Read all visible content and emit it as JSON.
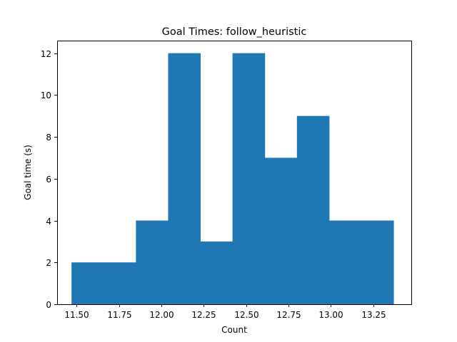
{
  "chart_data": {
    "type": "bar",
    "title": "Goal Times: follow_heuristic",
    "xlabel": "Count",
    "ylabel": "Goal time (s)",
    "bar_color": "#1f77b4",
    "xlim": [
      11.385,
      13.475
    ],
    "ylim": [
      0,
      12.6
    ],
    "bins": [
      {
        "x0": 11.47,
        "x1": 11.66,
        "value": 2
      },
      {
        "x0": 11.66,
        "x1": 11.85,
        "value": 2
      },
      {
        "x0": 11.85,
        "x1": 12.04,
        "value": 4
      },
      {
        "x0": 12.04,
        "x1": 12.23,
        "value": 12
      },
      {
        "x0": 12.23,
        "x1": 12.42,
        "value": 3
      },
      {
        "x0": 12.42,
        "x1": 12.61,
        "value": 12
      },
      {
        "x0": 12.61,
        "x1": 12.8,
        "value": 7
      },
      {
        "x0": 12.8,
        "x1": 12.99,
        "value": 9
      },
      {
        "x0": 12.99,
        "x1": 13.18,
        "value": 4
      },
      {
        "x0": 13.18,
        "x1": 13.37,
        "value": 4
      }
    ],
    "x_ticks": [
      {
        "value": 11.5,
        "label": "11.50"
      },
      {
        "value": 11.75,
        "label": "11.75"
      },
      {
        "value": 12.0,
        "label": "12.00"
      },
      {
        "value": 12.25,
        "label": "12.25"
      },
      {
        "value": 12.5,
        "label": "12.50"
      },
      {
        "value": 12.75,
        "label": "12.75"
      },
      {
        "value": 13.0,
        "label": "13.00"
      },
      {
        "value": 13.25,
        "label": "13.25"
      }
    ],
    "y_ticks": [
      {
        "value": 0,
        "label": "0"
      },
      {
        "value": 2,
        "label": "2"
      },
      {
        "value": 4,
        "label": "4"
      },
      {
        "value": 6,
        "label": "6"
      },
      {
        "value": 8,
        "label": "8"
      },
      {
        "value": 10,
        "label": "10"
      },
      {
        "value": 12,
        "label": "12"
      }
    ],
    "grid": false
  }
}
